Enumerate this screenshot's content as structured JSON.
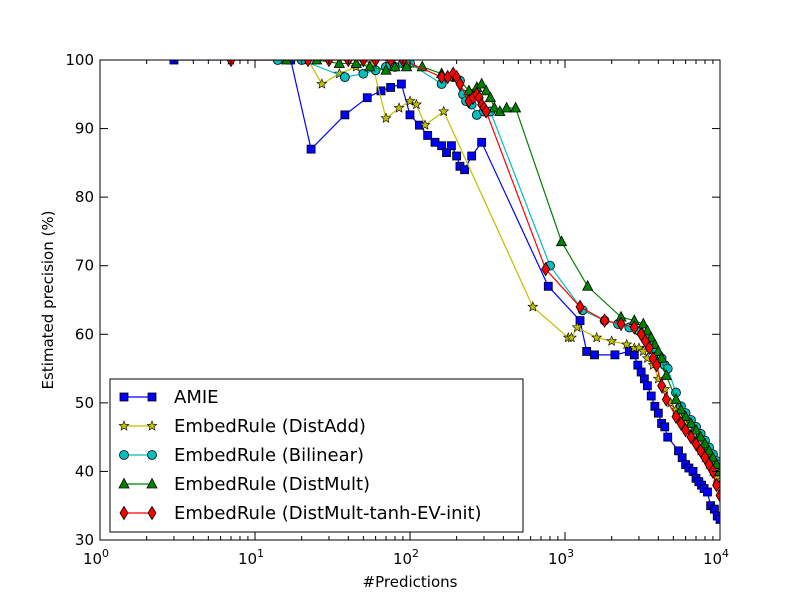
{
  "chart_data": {
    "type": "line",
    "xscale": "log",
    "xlabel": "#Predictions",
    "ylabel": "Estimated precision (%)",
    "xlim": [
      1,
      10000
    ],
    "ylim": [
      30,
      100
    ],
    "x_ticks": [
      {
        "value": 1,
        "base": "10",
        "exp": "0"
      },
      {
        "value": 10,
        "base": "10",
        "exp": "1"
      },
      {
        "value": 100,
        "base": "10",
        "exp": "2"
      },
      {
        "value": 1000,
        "base": "10",
        "exp": "3"
      },
      {
        "value": 10000,
        "base": "10",
        "exp": "4"
      }
    ],
    "y_ticks": [
      30,
      40,
      50,
      60,
      70,
      80,
      90,
      100
    ],
    "legend_position": "lower-left",
    "series": [
      {
        "name": "AMIE",
        "color": "#0000ff",
        "marker": "square",
        "x": [
          3,
          17,
          23,
          38,
          53,
          65,
          75,
          88,
          100,
          115,
          130,
          145,
          160,
          172,
          185,
          200,
          210,
          225,
          250,
          290,
          780,
          1250,
          1380,
          1550,
          2100,
          2600,
          2800,
          2950,
          3100,
          3250,
          3400,
          3600,
          3800,
          4000,
          4200,
          4400,
          4600,
          5400,
          5700,
          6000,
          6300,
          6700,
          7000,
          7300,
          7600,
          7900,
          8300,
          8700,
          9200,
          9600,
          10000
        ],
        "y": [
          100,
          100,
          87,
          92,
          94.5,
          95.5,
          96,
          96.5,
          92,
          90.5,
          89,
          88,
          87.5,
          86.5,
          87.5,
          86,
          84.5,
          84,
          86,
          88,
          67,
          62,
          57.5,
          57,
          57,
          57.5,
          57,
          55.5,
          54.5,
          53.5,
          52.5,
          51,
          49.5,
          48.5,
          47,
          46.5,
          45,
          43,
          42,
          41,
          40.5,
          40,
          39,
          38.5,
          38,
          37.5,
          37,
          35,
          34.5,
          33.5,
          33
        ]
      },
      {
        "name": "EmbedRule (DistAdd)",
        "color": "#bfbf00",
        "marker": "star",
        "x": [
          7,
          22,
          27,
          35,
          45,
          57,
          70,
          85,
          100,
          110,
          125,
          165,
          620,
          1050,
          1100,
          1200,
          1600,
          2000,
          2500,
          2800,
          3000,
          3200,
          3400,
          3700,
          4000,
          4400,
          4800,
          5200,
          5600,
          6000,
          6500,
          7000,
          7500,
          8000,
          8500,
          9000,
          9500,
          10000
        ],
        "y": [
          100,
          100,
          96.5,
          98,
          99,
          99.5,
          91.5,
          93,
          94,
          93.5,
          90.5,
          92.5,
          64,
          59.5,
          59.5,
          61,
          59.5,
          59,
          58.5,
          58,
          58,
          57.5,
          56.5,
          55.5,
          53.5,
          52,
          50,
          49,
          48,
          47,
          45.5,
          44.5,
          43,
          42,
          41,
          40,
          39,
          38
        ]
      },
      {
        "name": "EmbedRule (Bilinear)",
        "color": "#00bfbf",
        "marker": "circle",
        "x": [
          14,
          20,
          38,
          50,
          60,
          70,
          80,
          90,
          100,
          160,
          190,
          210,
          220,
          230,
          250,
          270,
          300,
          330,
          800,
          1300,
          1800,
          2200,
          2600,
          3000,
          3300,
          3600,
          3800,
          4000,
          4200,
          4400,
          4600,
          5200,
          5600,
          6000,
          6500,
          7000,
          7500,
          8000,
          8500,
          9000,
          9500,
          10000
        ],
        "y": [
          100,
          100,
          97.5,
          98,
          98.5,
          99,
          99,
          99.5,
          99.5,
          96.5,
          97.5,
          97,
          95,
          94,
          93.5,
          92,
          92.5,
          92.5,
          70,
          63.5,
          62,
          61.5,
          61,
          60.5,
          59.5,
          58.5,
          57.5,
          57,
          56.5,
          55.5,
          55,
          51.5,
          49.5,
          48.5,
          47.5,
          46.5,
          45.5,
          44.5,
          43.5,
          42.5,
          41.5,
          41
        ]
      },
      {
        "name": "EmbedRule (DistMult)",
        "color": "#008000",
        "marker": "triangle",
        "x": [
          16,
          25,
          35,
          45,
          55,
          70,
          80,
          95,
          120,
          160,
          200,
          240,
          270,
          290,
          310,
          330,
          350,
          380,
          420,
          480,
          950,
          1400,
          2300,
          2800,
          3200,
          3400,
          3600,
          3800,
          4000,
          4200,
          4500,
          5200,
          5600,
          6000,
          6500,
          7000,
          7500,
          8000,
          8500,
          9000,
          9500,
          10000
        ],
        "y": [
          100,
          100,
          99.5,
          99.5,
          99,
          98.5,
          99,
          99,
          99,
          98,
          97.5,
          95.5,
          96,
          96.5,
          95.5,
          94.5,
          93,
          92.5,
          93,
          93,
          73.5,
          67,
          62.5,
          62,
          61.5,
          60.5,
          59.5,
          58.5,
          57.5,
          56.5,
          54,
          50.5,
          49,
          48,
          47,
          46,
          45,
          44,
          43,
          42,
          41,
          40
        ]
      },
      {
        "name": "EmbedRule (DistMult-tanh-EV-init)",
        "color": "#ff0000",
        "marker": "diamond",
        "x": [
          7,
          22,
          30,
          40,
          50,
          60,
          75,
          90,
          160,
          175,
          190,
          200,
          210,
          240,
          255,
          270,
          280,
          290,
          300,
          310,
          750,
          1250,
          1800,
          2300,
          2800,
          3100,
          3300,
          3500,
          3700,
          3900,
          4200,
          4500,
          5200,
          5600,
          6000,
          6500,
          7000,
          7500,
          8000,
          8500,
          9000,
          9500,
          10000
        ],
        "y": [
          100,
          100,
          100,
          100,
          100,
          100,
          100,
          100,
          97.5,
          97.5,
          98,
          97.5,
          96.5,
          94,
          94.5,
          95,
          94.5,
          93.5,
          93,
          92.5,
          69.5,
          64,
          62,
          61.5,
          61,
          60,
          59,
          58,
          56.5,
          55.5,
          52.5,
          50.5,
          48,
          47,
          46,
          45,
          44,
          43,
          42,
          41,
          40,
          38,
          36.5
        ]
      }
    ]
  }
}
